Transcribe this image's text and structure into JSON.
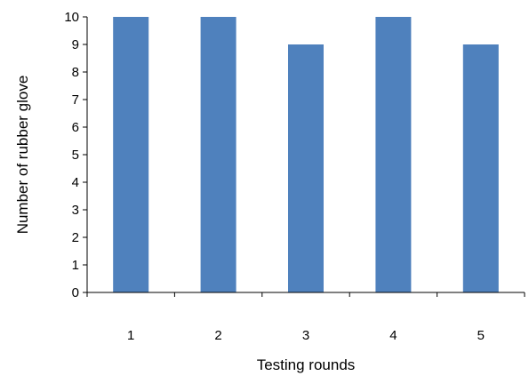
{
  "chart_data": {
    "type": "bar",
    "title": "",
    "xlabel": "Testing rounds",
    "ylabel": "Number of rubber glove",
    "categories": [
      "1",
      "2",
      "3",
      "4",
      "5"
    ],
    "values": [
      10,
      10,
      9,
      10,
      9
    ],
    "ylim": [
      0,
      10
    ],
    "yticks": [
      "0",
      "1",
      "2",
      "3",
      "4",
      "5",
      "6",
      "7",
      "8",
      "9",
      "10"
    ],
    "grid": false,
    "legend": "none",
    "bar_color": "#4f81bd",
    "axis_color": "#000000"
  }
}
